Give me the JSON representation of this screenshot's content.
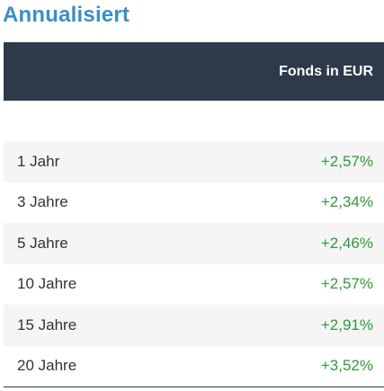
{
  "title": "Annualisiert",
  "table": {
    "column_header": "Fonds in EUR",
    "rows": [
      {
        "period": "1 Jahr",
        "value": "+2,57%"
      },
      {
        "period": "3 Jahre",
        "value": "+2,34%"
      },
      {
        "period": "5 Jahre",
        "value": "+2,46%"
      },
      {
        "period": "10 Jahre",
        "value": "+2,57%"
      },
      {
        "period": "15 Jahre",
        "value": "+2,91%"
      },
      {
        "period": "20 Jahre",
        "value": "+3,52%"
      }
    ]
  },
  "colors": {
    "title": "#3a8fc4",
    "header_bg": "#2d3a4c",
    "positive": "#2e9a3c",
    "row_alt_bg": "#f5f5f5"
  }
}
